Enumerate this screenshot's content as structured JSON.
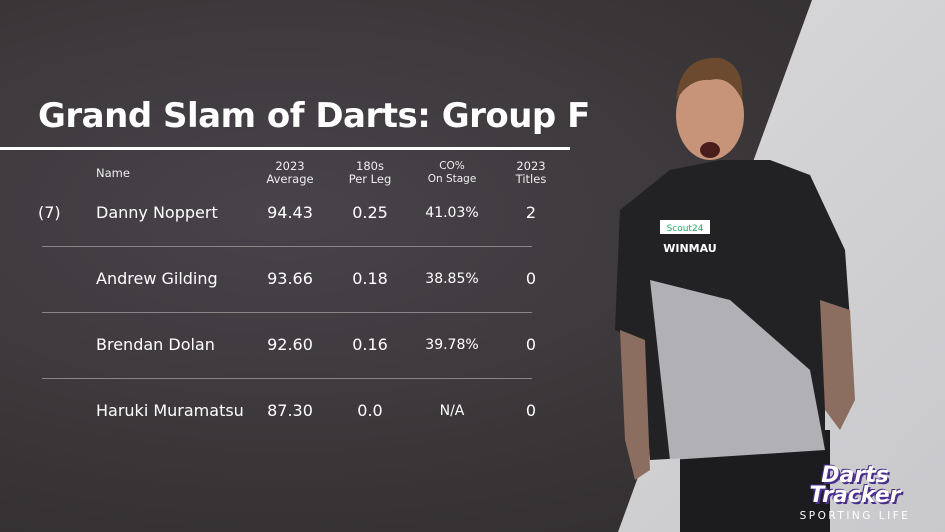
{
  "title": "Grand Slam of Darts: Group F",
  "headers": {
    "name": "Name",
    "avg": [
      "2023",
      "Average"
    ],
    "s180": [
      "180s",
      "Per Leg"
    ],
    "co": [
      "CO%",
      "On Stage"
    ],
    "titles": [
      "2023",
      "Titles"
    ]
  },
  "rows": [
    {
      "seed": "(7)",
      "name": "Danny Noppert",
      "avg": "94.43",
      "s180": "0.25",
      "co": "41.03%",
      "titles": "2"
    },
    {
      "seed": "",
      "name": "Andrew Gilding",
      "avg": "93.66",
      "s180": "0.18",
      "co": "38.85%",
      "titles": "0"
    },
    {
      "seed": "",
      "name": "Brendan Dolan",
      "avg": "92.60",
      "s180": "0.16",
      "co": "39.78%",
      "titles": "0"
    },
    {
      "seed": "",
      "name": "Haruki Muramatsu",
      "avg": "87.30",
      "s180": "0.0",
      "co": "N/A",
      "titles": "0"
    }
  ],
  "logo": {
    "line1": "Darts",
    "line2": "Tracker",
    "line3": "SPORTING LIFE"
  },
  "shirt_text": [
    "Scout24",
    "WINMAU"
  ],
  "colors": {
    "background": "#3b3738",
    "logo_purple": "#4b2f8c"
  }
}
